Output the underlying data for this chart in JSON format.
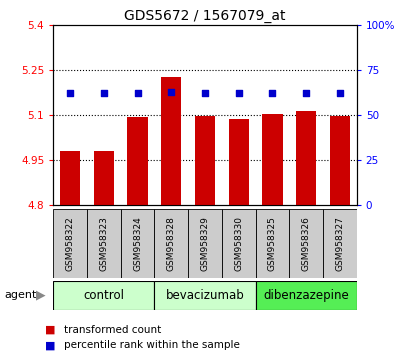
{
  "title": "GDS5672 / 1567079_at",
  "samples": [
    "GSM958322",
    "GSM958323",
    "GSM958324",
    "GSM958328",
    "GSM958329",
    "GSM958330",
    "GSM958325",
    "GSM958326",
    "GSM958327"
  ],
  "bar_values": [
    4.982,
    4.98,
    5.092,
    5.228,
    5.098,
    5.087,
    5.103,
    5.115,
    5.097
  ],
  "percentile_values": [
    62,
    62,
    62,
    63,
    62,
    62,
    62,
    62,
    62
  ],
  "ylim_left": [
    4.8,
    5.4
  ],
  "ylim_right": [
    0,
    100
  ],
  "yticks_left": [
    4.8,
    4.95,
    5.1,
    5.25,
    5.4
  ],
  "yticks_right": [
    0,
    25,
    50,
    75,
    100
  ],
  "ytick_labels_right": [
    "0",
    "25",
    "50",
    "75",
    "100%"
  ],
  "dotted_lines": [
    5.25,
    5.1,
    4.95
  ],
  "bar_color": "#cc0000",
  "dot_color": "#0000cc",
  "bar_bottom": 4.8,
  "groups": [
    {
      "label": "control",
      "indices": [
        0,
        1,
        2
      ],
      "color": "#ccffcc"
    },
    {
      "label": "bevacizumab",
      "indices": [
        3,
        4,
        5
      ],
      "color": "#ccffcc"
    },
    {
      "label": "dibenzazepine",
      "indices": [
        6,
        7,
        8
      ],
      "color": "#55ee55"
    }
  ],
  "agent_label": "agent",
  "legend_bar_label": "transformed count",
  "legend_dot_label": "percentile rank within the sample",
  "title_fontsize": 10,
  "axis_tick_fontsize": 7.5,
  "sample_label_fontsize": 6.5,
  "group_label_fontsize": 8.5,
  "background_color": "#ffffff"
}
